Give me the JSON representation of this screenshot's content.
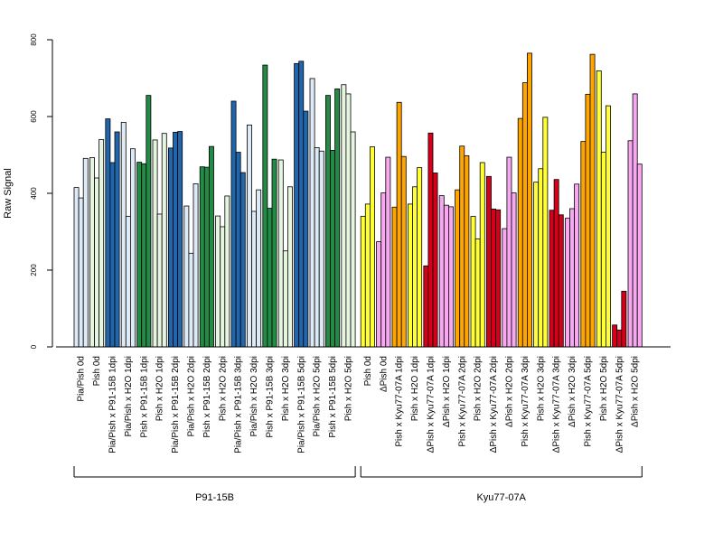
{
  "chart_data": {
    "type": "bar",
    "ylabel": "Raw Signal",
    "ylim": [
      0,
      800
    ],
    "yticks": [
      "0",
      "200",
      "400",
      "600",
      "800"
    ],
    "grid": false,
    "groups": [
      {
        "label": "P91-15B",
        "categories": [
          {
            "label": "Pia/Pish 0d",
            "values": [
              415,
              388,
              491
            ],
            "colors": [
              "#deebf7",
              "#deebf7",
              "#deebf7"
            ]
          },
          {
            "label": "Pish 0d",
            "values": [
              493,
              440,
              540
            ],
            "colors": [
              "#e5f5e0",
              "#e5f5e0",
              "#e5f5e0"
            ]
          },
          {
            "label": "Pia/Pish x P91-15B 1dpi",
            "values": [
              594,
              480,
              560
            ],
            "colors": [
              "#2166ac",
              "#2166ac",
              "#2166ac"
            ]
          },
          {
            "label": "Pia/Pish x H2O 1dpi",
            "values": [
              585,
              340,
              516
            ],
            "colors": [
              "#deebf7",
              "#deebf7",
              "#deebf7"
            ]
          },
          {
            "label": "Pish x P91-15B 1dpi",
            "values": [
              481,
              477,
              655
            ],
            "colors": [
              "#238b45",
              "#238b45",
              "#238b45"
            ]
          },
          {
            "label": "Pish x H2O 1dpi",
            "values": [
              539,
              346,
              556
            ],
            "colors": [
              "#e5f5e0",
              "#e5f5e0",
              "#e5f5e0"
            ]
          },
          {
            "label": "Pia/Pish x P91-15B 2dpi",
            "values": [
              518,
              559,
              561
            ],
            "colors": [
              "#2166ac",
              "#2166ac",
              "#2166ac"
            ]
          },
          {
            "label": "Pia/Pish x H2O 2dpi",
            "values": [
              367,
              244,
              425
            ],
            "colors": [
              "#deebf7",
              "#deebf7",
              "#deebf7"
            ]
          },
          {
            "label": "Pish x P91-15B 2dpi",
            "values": [
              469,
              468,
              522
            ],
            "colors": [
              "#238b45",
              "#238b45",
              "#238b45"
            ]
          },
          {
            "label": "Pish x H2O 2dpi",
            "values": [
              341,
              313,
              393
            ],
            "colors": [
              "#e5f5e0",
              "#e5f5e0",
              "#e5f5e0"
            ]
          },
          {
            "label": "Pia/Pish x P91-15B 3dpi",
            "values": [
              640,
              507,
              454
            ],
            "colors": [
              "#2166ac",
              "#2166ac",
              "#2166ac"
            ]
          },
          {
            "label": "Pia/Pish x H2O 3dpi",
            "values": [
              578,
              353,
              409
            ],
            "colors": [
              "#deebf7",
              "#deebf7",
              "#deebf7"
            ]
          },
          {
            "label": "Pish x P91-15B 3dpi",
            "values": [
              734,
              361,
              489
            ],
            "colors": [
              "#238b45",
              "#238b45",
              "#238b45"
            ]
          },
          {
            "label": "Pish x H2O 3dpi",
            "values": [
              487,
              250,
              417
            ],
            "colors": [
              "#e5f5e0",
              "#e5f5e0",
              "#e5f5e0"
            ]
          },
          {
            "label": "Pia/Pish x P91-15B 5dpi",
            "values": [
              738,
              744,
              614
            ],
            "colors": [
              "#2166ac",
              "#2166ac",
              "#2166ac"
            ]
          },
          {
            "label": "Pia/Pish x H2O 5dpi",
            "values": [
              699,
              519,
              510
            ],
            "colors": [
              "#deebf7",
              "#deebf7",
              "#deebf7"
            ]
          },
          {
            "label": "Pish x P91-15B 5dpi",
            "values": [
              655,
              512,
              672
            ],
            "colors": [
              "#238b45",
              "#238b45",
              "#238b45"
            ]
          },
          {
            "label": "Pish x H2O 5dpi",
            "values": [
              683,
              659,
              560
            ],
            "colors": [
              "#e5f5e0",
              "#e5f5e0",
              "#e5f5e0"
            ]
          }
        ]
      },
      {
        "label": "Kyu77-07A",
        "categories": [
          {
            "label": "Pish 0d",
            "values": [
              340,
              372,
              521
            ],
            "colors": [
              "#ffff33",
              "#ffff33",
              "#ffff33"
            ]
          },
          {
            "label": "ΔPish 0d",
            "values": [
              274,
              401,
              494
            ],
            "colors": [
              "#f7a8f0",
              "#f7a8f0",
              "#f7a8f0"
            ]
          },
          {
            "label": "Pish x Kyu77-07A 1dpi",
            "values": [
              364,
              637,
              496
            ],
            "colors": [
              "#ffa500",
              "#ffa500",
              "#ffa500"
            ]
          },
          {
            "label": "Pish x H2O 1dpi",
            "values": [
              372,
              417,
              467
            ],
            "colors": [
              "#ffff33",
              "#ffff33",
              "#ffff33"
            ]
          },
          {
            "label": "ΔPish x Kyu77-07A 1dpi",
            "values": [
              211,
              557,
              453
            ],
            "colors": [
              "#d7001a",
              "#d7001a",
              "#d7001a"
            ]
          },
          {
            "label": "ΔPish x H2O 1dpi",
            "values": [
              394,
              369,
              365
            ],
            "colors": [
              "#f7a8f0",
              "#f7a8f0",
              "#f7a8f0"
            ]
          },
          {
            "label": "Pish x Kyu77-07A 2dpi",
            "values": [
              409,
              523,
              498
            ],
            "colors": [
              "#ffa500",
              "#ffa500",
              "#ffa500"
            ]
          },
          {
            "label": "Pish x H2O 2dpi",
            "values": [
              340,
              281,
              480
            ],
            "colors": [
              "#ffff33",
              "#ffff33",
              "#ffff33"
            ]
          },
          {
            "label": "ΔPish x Kyu77-07A 2dpi",
            "values": [
              444,
              359,
              357
            ],
            "colors": [
              "#d7001a",
              "#d7001a",
              "#d7001a"
            ]
          },
          {
            "label": "ΔPish x H2O 2dpi",
            "values": [
              308,
              494,
              401
            ],
            "colors": [
              "#f7a8f0",
              "#f7a8f0",
              "#f7a8f0"
            ]
          },
          {
            "label": "Pish x Kyu77-07A 3dpi",
            "values": [
              595,
              688,
              765
            ],
            "colors": [
              "#ffa500",
              "#ffa500",
              "#ffa500"
            ]
          },
          {
            "label": "Pish x H2O 3dpi",
            "values": [
              429,
              464,
              598
            ],
            "colors": [
              "#ffff33",
              "#ffff33",
              "#ffff33"
            ]
          },
          {
            "label": "ΔPish x Kyu77-07A 3dpi",
            "values": [
              356,
              436,
              344
            ],
            "colors": [
              "#d7001a",
              "#d7001a",
              "#d7001a"
            ]
          },
          {
            "label": "ΔPish x H2O 3dpi",
            "values": [
              335,
              360,
              424
            ],
            "colors": [
              "#f7a8f0",
              "#f7a8f0",
              "#f7a8f0"
            ]
          },
          {
            "label": "Pish x Kyu77-07A 5dpi",
            "values": [
              535,
              658,
              762
            ],
            "colors": [
              "#ffa500",
              "#ffa500",
              "#ffa500"
            ]
          },
          {
            "label": "Pish x H2O 5dpi",
            "values": [
              719,
              507,
              628
            ],
            "colors": [
              "#ffff33",
              "#ffff33",
              "#ffff33"
            ]
          },
          {
            "label": "ΔPish x Kyu77-07A 5dpi",
            "values": [
              57,
              44,
              145
            ],
            "colors": [
              "#d7001a",
              "#d7001a",
              "#d7001a"
            ]
          },
          {
            "label": "ΔPish x H2O 5dpi",
            "values": [
              537,
              659,
              476
            ],
            "colors": [
              "#f7a8f0",
              "#f7a8f0",
              "#f7a8f0"
            ]
          }
        ]
      }
    ]
  }
}
